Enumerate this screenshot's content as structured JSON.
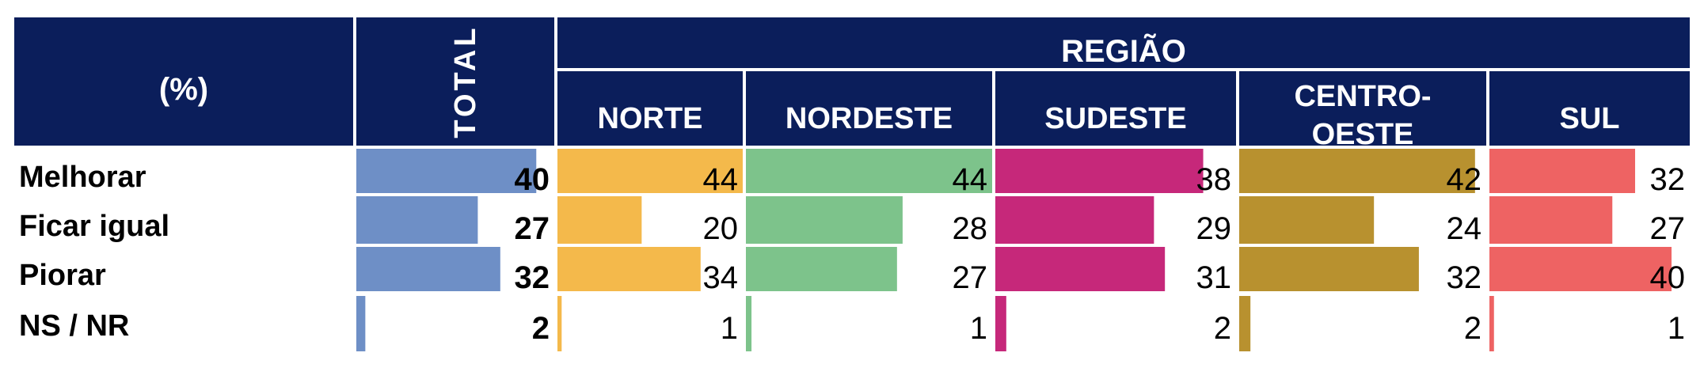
{
  "header": {
    "corner_label": "(%)",
    "total_label": "TOTAL",
    "group_label": "REGIÃO"
  },
  "chart_data": {
    "type": "table",
    "rows": [
      "Melhorar",
      "Ficar igual",
      "Piorar",
      "NS / NR"
    ],
    "columns": [
      {
        "name": "TOTAL",
        "color": "#6e8fc6",
        "values": [
          40,
          27,
          32,
          2
        ]
      },
      {
        "name": "NORTE",
        "color": "#f4b94b",
        "values": [
          44,
          20,
          34,
          1
        ]
      },
      {
        "name": "NORDESTE",
        "color": "#7dc38b",
        "values": [
          44,
          28,
          27,
          1
        ]
      },
      {
        "name": "SUDESTE",
        "color": "#c6287a",
        "values": [
          38,
          29,
          31,
          2
        ]
      },
      {
        "name": "CENTRO-OESTE",
        "color": "#b8912f",
        "values": [
          42,
          24,
          32,
          2
        ]
      },
      {
        "name": "SUL",
        "color": "#ee6363",
        "values": [
          32,
          27,
          40,
          1
        ]
      }
    ],
    "header_color": "#0b1e5b",
    "max_value": 44
  }
}
